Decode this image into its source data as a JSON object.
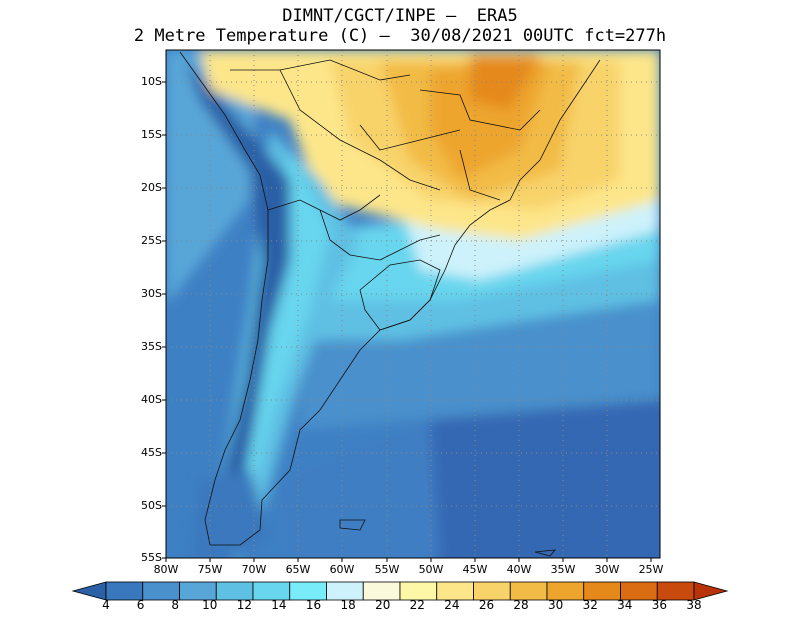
{
  "title": {
    "line1": "DIMNT/CGCT/INPE –  ERA5",
    "line2": "2 Metre Temperature (C) –  30/08/2021 00UTC fct=277h"
  },
  "map": {
    "lat_labels": [
      "10S",
      "15S",
      "20S",
      "25S",
      "30S",
      "35S",
      "40S",
      "45S",
      "50S",
      "55S"
    ],
    "lon_labels": [
      "80W",
      "75W",
      "70W",
      "65W",
      "60W",
      "55W",
      "50W",
      "45W",
      "40W",
      "35W",
      "30W",
      "25W"
    ]
  },
  "colorbar": {
    "labels": [
      "4",
      "6",
      "8",
      "10",
      "12",
      "14",
      "16",
      "18",
      "20",
      "22",
      "24",
      "26",
      "28",
      "30",
      "32",
      "34",
      "36",
      "38"
    ],
    "colors": [
      "#2b5fa6",
      "#3a78bd",
      "#4a90cc",
      "#58a6d8",
      "#5ec0e3",
      "#67d6ee",
      "#79ecf9",
      "#cdf2fb",
      "#fbf9dc",
      "#fdf8a8",
      "#fde68a",
      "#f8d36a",
      "#f2bb45",
      "#eda52e",
      "#e5891a",
      "#da6c13",
      "#c84a0d",
      "#b8330a"
    ]
  }
}
